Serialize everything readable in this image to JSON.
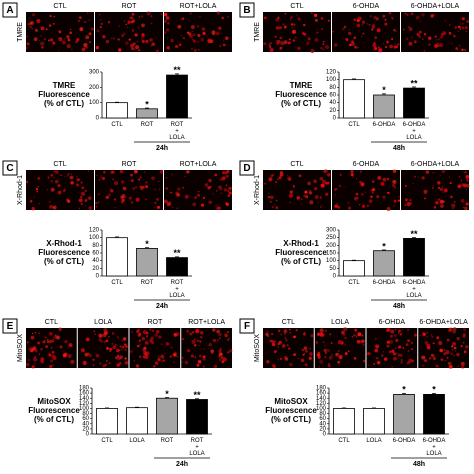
{
  "chart_data": [
    {
      "type": "bar",
      "panel": "A",
      "stain": "TMRE",
      "image_labels": [
        "CTL",
        "ROT",
        "ROT+LOLA"
      ],
      "ylabel": [
        "TMRE",
        "Fluorescence",
        "(% of CTL)"
      ],
      "categories": [
        "CTL",
        "ROT",
        "ROT\n+\nLOLA"
      ],
      "values": [
        100,
        60,
        280
      ],
      "errors": [
        3,
        5,
        8
      ],
      "significance": [
        null,
        "*",
        "**"
      ],
      "colors": [
        "#ffffff",
        "#a6a6a6",
        "#000000"
      ],
      "ylim": [
        0,
        300
      ],
      "yticks": [
        0,
        100,
        200,
        300
      ],
      "time": "24h"
    },
    {
      "type": "bar",
      "panel": "B",
      "stain": "TMRE",
      "image_labels": [
        "CTL",
        "6-OHDA",
        "6-OHDA+LOLA"
      ],
      "ylabel": [
        "TMRE",
        "Fluorescence",
        "(% of CTL)"
      ],
      "categories": [
        "CTL",
        "6-OHDA",
        "6-OHDA\n+\nLOLA"
      ],
      "values": [
        100,
        60,
        78
      ],
      "errors": [
        2,
        3,
        3
      ],
      "significance": [
        null,
        "*",
        "**"
      ],
      "colors": [
        "#ffffff",
        "#a6a6a6",
        "#000000"
      ],
      "ylim": [
        0,
        120
      ],
      "yticks": [
        0,
        20,
        40,
        60,
        80,
        100,
        120
      ],
      "time": "48h"
    },
    {
      "type": "bar",
      "panel": "C",
      "stain": "X-Rhod-1",
      "image_labels": [
        "CTL",
        "ROT",
        "ROT+LOLA"
      ],
      "ylabel": [
        "X-Rhod-1",
        "Fluorescence",
        "(% of CTL)"
      ],
      "categories": [
        "CTL",
        "ROT",
        "ROT\n+\nLOLA"
      ],
      "values": [
        100,
        72,
        48
      ],
      "errors": [
        2,
        2,
        2
      ],
      "significance": [
        null,
        "*",
        "**"
      ],
      "colors": [
        "#ffffff",
        "#a6a6a6",
        "#000000"
      ],
      "ylim": [
        0,
        120
      ],
      "yticks": [
        0,
        20,
        40,
        60,
        80,
        100,
        120
      ],
      "time": "24h"
    },
    {
      "type": "bar",
      "panel": "D",
      "stain": "X-Rhod-1",
      "image_labels": [
        "CTL",
        "6-OHDA",
        "6-OHDA+LOLA"
      ],
      "ylabel": [
        "X-Rhod-1",
        "Fluorescence",
        "(% of CTL)"
      ],
      "categories": [
        "CTL",
        "6-OHDA",
        "6-OHDA\n+\nLOLA"
      ],
      "values": [
        100,
        165,
        245
      ],
      "errors": [
        3,
        5,
        6
      ],
      "significance": [
        null,
        "*",
        "**"
      ],
      "colors": [
        "#ffffff",
        "#a6a6a6",
        "#000000"
      ],
      "ylim": [
        0,
        300
      ],
      "yticks": [
        0,
        50,
        100,
        150,
        200,
        250,
        300
      ],
      "time": "48h"
    },
    {
      "type": "bar",
      "panel": "E",
      "stain": "MitoSOX",
      "image_labels": [
        "CTL",
        "LOLA",
        "ROT",
        "ROT+LOLA"
      ],
      "ylabel": [
        "MitoSOX",
        "Fluorescence",
        "(% of CTL)"
      ],
      "categories": [
        "CTL",
        "LOLA",
        "ROT",
        "ROT\n+\nLOLA"
      ],
      "values": [
        100,
        103,
        140,
        135
      ],
      "errors": [
        2,
        2,
        3,
        3
      ],
      "significance": [
        null,
        null,
        "*",
        "**"
      ],
      "colors": [
        "#ffffff",
        "#ffffff",
        "#a6a6a6",
        "#000000"
      ],
      "ylim": [
        0,
        180
      ],
      "yticks": [
        0,
        20,
        40,
        60,
        80,
        100,
        120,
        140,
        160,
        180
      ],
      "time": "24h"
    },
    {
      "type": "bar",
      "panel": "F",
      "stain": "MitoSOX",
      "image_labels": [
        "CTL",
        "LOLA",
        "6-OHDA",
        "6-OHDA+LOLA"
      ],
      "ylabel": [
        "MitoSOX",
        "Fluorescence",
        "(% of CTL)"
      ],
      "categories": [
        "CTL",
        "LOLA",
        "6-OHDA",
        "6-OHDA\n+\nLOLA"
      ],
      "values": [
        100,
        100,
        155,
        155
      ],
      "errors": [
        2,
        2,
        4,
        4
      ],
      "significance": [
        null,
        null,
        "*",
        "*"
      ],
      "colors": [
        "#ffffff",
        "#ffffff",
        "#a6a6a6",
        "#000000"
      ],
      "ylim": [
        0,
        180
      ],
      "yticks": [
        0,
        20,
        40,
        60,
        80,
        100,
        120,
        140,
        160,
        180
      ],
      "time": "48h"
    }
  ]
}
